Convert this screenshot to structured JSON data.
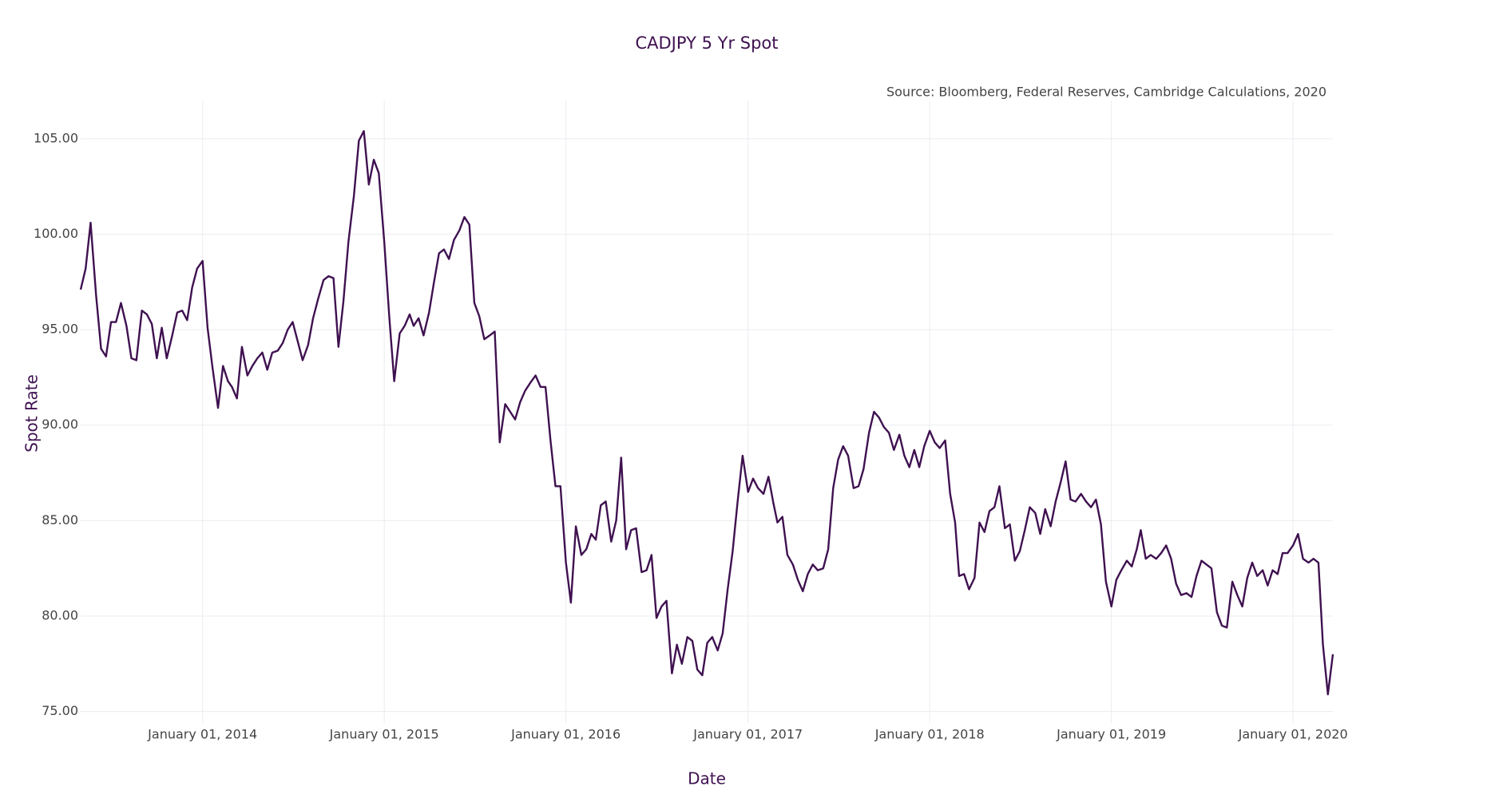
{
  "chart_data": {
    "type": "line",
    "title": "CADJPY 5 Yr Spot",
    "source": "Source: Bloomberg, Federal Reserves, Cambridge Calculations, 2020",
    "xlabel": "Date",
    "ylabel": "Spot Rate",
    "color": "#3f1150",
    "grid": true,
    "xlim": [
      "2013-05-01",
      "2020-03-21"
    ],
    "xticks": [
      {
        "value": "2014-01-01",
        "label": "January 01, 2014"
      },
      {
        "value": "2015-01-01",
        "label": "January 01, 2015"
      },
      {
        "value": "2016-01-01",
        "label": "January 01, 2016"
      },
      {
        "value": "2017-01-01",
        "label": "January 01, 2017"
      },
      {
        "value": "2018-01-01",
        "label": "January 01, 2018"
      },
      {
        "value": "2019-01-01",
        "label": "January 01, 2019"
      },
      {
        "value": "2020-01-01",
        "label": "January 01, 2020"
      }
    ],
    "ylim": [
      74.4,
      107
    ],
    "yticks": [
      {
        "value": 75,
        "label": "75.00"
      },
      {
        "value": 80,
        "label": "80.00"
      },
      {
        "value": 85,
        "label": "85.00"
      },
      {
        "value": 90,
        "label": "90.00"
      },
      {
        "value": 95,
        "label": "95.00"
      },
      {
        "value": 100,
        "label": "100.00"
      },
      {
        "value": 105,
        "label": "105.00"
      }
    ],
    "x": [
      "2013-05-01",
      "2013-05-11",
      "2013-05-21",
      "2013-06-01",
      "2013-06-11",
      "2013-06-21",
      "2013-07-01",
      "2013-07-11",
      "2013-07-21",
      "2013-08-01",
      "2013-08-11",
      "2013-08-21",
      "2013-09-01",
      "2013-09-11",
      "2013-09-21",
      "2013-10-01",
      "2013-10-11",
      "2013-10-21",
      "2013-11-01",
      "2013-11-11",
      "2013-11-21",
      "2013-12-01",
      "2013-12-11",
      "2013-12-21",
      "2014-01-01",
      "2014-01-11",
      "2014-01-21",
      "2014-02-01",
      "2014-02-11",
      "2014-02-21",
      "2014-03-01",
      "2014-03-11",
      "2014-03-21",
      "2014-04-01",
      "2014-04-11",
      "2014-04-21",
      "2014-05-01",
      "2014-05-11",
      "2014-05-21",
      "2014-06-01",
      "2014-06-11",
      "2014-06-21",
      "2014-07-01",
      "2014-07-11",
      "2014-07-21",
      "2014-08-01",
      "2014-08-11",
      "2014-08-21",
      "2014-09-01",
      "2014-09-11",
      "2014-09-21",
      "2014-10-01",
      "2014-10-11",
      "2014-10-21",
      "2014-11-01",
      "2014-11-11",
      "2014-11-21",
      "2014-12-01",
      "2014-12-11",
      "2014-12-21",
      "2015-01-01",
      "2015-01-11",
      "2015-01-21",
      "2015-02-01",
      "2015-02-11",
      "2015-02-21",
      "2015-03-01",
      "2015-03-11",
      "2015-03-21",
      "2015-04-01",
      "2015-04-11",
      "2015-04-21",
      "2015-05-01",
      "2015-05-11",
      "2015-05-21",
      "2015-06-01",
      "2015-06-11",
      "2015-06-21",
      "2015-07-01",
      "2015-07-11",
      "2015-07-21",
      "2015-08-01",
      "2015-08-11",
      "2015-08-21",
      "2015-09-01",
      "2015-09-11",
      "2015-09-21",
      "2015-10-01",
      "2015-10-11",
      "2015-10-21",
      "2015-11-01",
      "2015-11-11",
      "2015-11-21",
      "2015-12-01",
      "2015-12-11",
      "2015-12-21",
      "2016-01-01",
      "2016-01-11",
      "2016-01-21",
      "2016-02-01",
      "2016-02-11",
      "2016-02-21",
      "2016-03-01",
      "2016-03-11",
      "2016-03-21",
      "2016-04-01",
      "2016-04-11",
      "2016-04-21",
      "2016-05-01",
      "2016-05-11",
      "2016-05-21",
      "2016-06-01",
      "2016-06-11",
      "2016-06-21",
      "2016-07-01",
      "2016-07-11",
      "2016-07-21",
      "2016-08-01",
      "2016-08-11",
      "2016-08-21",
      "2016-09-01",
      "2016-09-11",
      "2016-09-21",
      "2016-10-01",
      "2016-10-11",
      "2016-10-21",
      "2016-11-01",
      "2016-11-11",
      "2016-11-21",
      "2016-12-01",
      "2016-12-11",
      "2016-12-21",
      "2017-01-01",
      "2017-01-11",
      "2017-01-21",
      "2017-02-01",
      "2017-02-11",
      "2017-02-21",
      "2017-03-01",
      "2017-03-11",
      "2017-03-21",
      "2017-04-01",
      "2017-04-11",
      "2017-04-21",
      "2017-05-01",
      "2017-05-11",
      "2017-05-21",
      "2017-06-01",
      "2017-06-11",
      "2017-06-21",
      "2017-07-01",
      "2017-07-11",
      "2017-07-21",
      "2017-08-01",
      "2017-08-11",
      "2017-08-21",
      "2017-09-01",
      "2017-09-11",
      "2017-09-21",
      "2017-10-01",
      "2017-10-11",
      "2017-10-21",
      "2017-11-01",
      "2017-11-11",
      "2017-11-21",
      "2017-12-01",
      "2017-12-11",
      "2017-12-21",
      "2018-01-01",
      "2018-01-11",
      "2018-01-21",
      "2018-02-01",
      "2018-02-11",
      "2018-02-21",
      "2018-03-01",
      "2018-03-11",
      "2018-03-21",
      "2018-04-01",
      "2018-04-11",
      "2018-04-21",
      "2018-05-01",
      "2018-05-11",
      "2018-05-21",
      "2018-06-01",
      "2018-06-11",
      "2018-06-21",
      "2018-07-01",
      "2018-07-11",
      "2018-07-21",
      "2018-08-01",
      "2018-08-11",
      "2018-08-21",
      "2018-09-01",
      "2018-09-11",
      "2018-09-21",
      "2018-10-01",
      "2018-10-11",
      "2018-10-21",
      "2018-11-01",
      "2018-11-11",
      "2018-11-21",
      "2018-12-01",
      "2018-12-11",
      "2018-12-21",
      "2019-01-01",
      "2019-01-11",
      "2019-01-21",
      "2019-02-01",
      "2019-02-11",
      "2019-02-21",
      "2019-03-01",
      "2019-03-11",
      "2019-03-21",
      "2019-04-01",
      "2019-04-11",
      "2019-04-21",
      "2019-05-01",
      "2019-05-11",
      "2019-05-21",
      "2019-06-01",
      "2019-06-11",
      "2019-06-21",
      "2019-07-01",
      "2019-07-11",
      "2019-07-21",
      "2019-08-01",
      "2019-08-11",
      "2019-08-21",
      "2019-09-01",
      "2019-09-11",
      "2019-09-21",
      "2019-10-01",
      "2019-10-11",
      "2019-10-21",
      "2019-11-01",
      "2019-11-11",
      "2019-11-21",
      "2019-12-01",
      "2019-12-11",
      "2019-12-21",
      "2020-01-01",
      "2020-01-11",
      "2020-01-21",
      "2020-02-01",
      "2020-02-11",
      "2020-02-21",
      "2020-03-01",
      "2020-03-11",
      "2020-03-21"
    ],
    "values": [
      97.1,
      98.2,
      100.6,
      96.8,
      94.0,
      93.6,
      95.4,
      95.4,
      96.4,
      95.2,
      93.5,
      93.4,
      96.0,
      95.8,
      95.3,
      93.5,
      95.1,
      93.5,
      94.7,
      95.9,
      96.0,
      95.5,
      97.2,
      98.2,
      98.6,
      95.1,
      93.0,
      90.9,
      93.1,
      92.3,
      92.0,
      91.4,
      94.1,
      92.6,
      93.1,
      93.5,
      93.8,
      92.9,
      93.8,
      93.9,
      94.3,
      95.0,
      95.4,
      94.4,
      93.4,
      94.2,
      95.6,
      96.6,
      97.6,
      97.8,
      97.7,
      94.1,
      96.5,
      99.6,
      102.0,
      104.9,
      105.4,
      102.6,
      103.9,
      103.2,
      99.6,
      95.7,
      92.3,
      94.8,
      95.2,
      95.8,
      95.2,
      95.6,
      94.7,
      95.9,
      97.5,
      99.0,
      99.2,
      98.7,
      99.7,
      100.2,
      100.9,
      100.5,
      96.4,
      95.7,
      94.5,
      94.7,
      94.9,
      89.1,
      91.1,
      90.7,
      90.3,
      91.2,
      91.8,
      92.2,
      92.6,
      92.0,
      92.0,
      89.2,
      86.8,
      86.8,
      82.8,
      80.7,
      84.7,
      83.2,
      83.5,
      84.3,
      84.0,
      85.8,
      86.0,
      83.9,
      85.0,
      88.3,
      83.5,
      84.5,
      84.6,
      82.3,
      82.4,
      83.2,
      79.9,
      80.5,
      80.8,
      77.0,
      78.5,
      77.5,
      78.9,
      78.7,
      77.2,
      76.9,
      78.6,
      78.9,
      78.2,
      79.1,
      81.4,
      83.4,
      86.0,
      88.4,
      86.5,
      87.2,
      86.7,
      86.4,
      87.3,
      85.9,
      84.9,
      85.2,
      83.2,
      82.7,
      81.9,
      81.3,
      82.2,
      82.7,
      82.4,
      82.5,
      83.5,
      86.7,
      88.2,
      88.9,
      88.4,
      86.7,
      86.8,
      87.7,
      89.6,
      90.7,
      90.4,
      89.9,
      89.6,
      88.7,
      89.5,
      88.4,
      87.8,
      88.7,
      87.8,
      88.9,
      89.7,
      89.1,
      88.8,
      89.2,
      86.4,
      84.9,
      82.1,
      82.2,
      81.4,
      82.0,
      84.9,
      84.4,
      85.5,
      85.7,
      86.8,
      84.6,
      84.8,
      82.9,
      83.4,
      84.5,
      85.7,
      85.4,
      84.3,
      85.6,
      84.7,
      86.0,
      87.0,
      88.1,
      86.1,
      86.0,
      86.4,
      86.0,
      85.7,
      86.1,
      84.8,
      81.8,
      80.5,
      81.9,
      82.4,
      82.9,
      82.6,
      83.5,
      84.5,
      83.0,
      83.2,
      83.0,
      83.3,
      83.7,
      83.0,
      81.7,
      81.1,
      81.2,
      81.0,
      82.1,
      82.9,
      82.7,
      82.5,
      80.2,
      79.5,
      79.4,
      81.8,
      81.1,
      80.5,
      82.0,
      82.8,
      82.1,
      82.4,
      81.6,
      82.4,
      82.2,
      83.3,
      83.3,
      83.7,
      84.3,
      83.0,
      82.8,
      83.0,
      82.8,
      78.5,
      75.9,
      78.0
    ]
  }
}
